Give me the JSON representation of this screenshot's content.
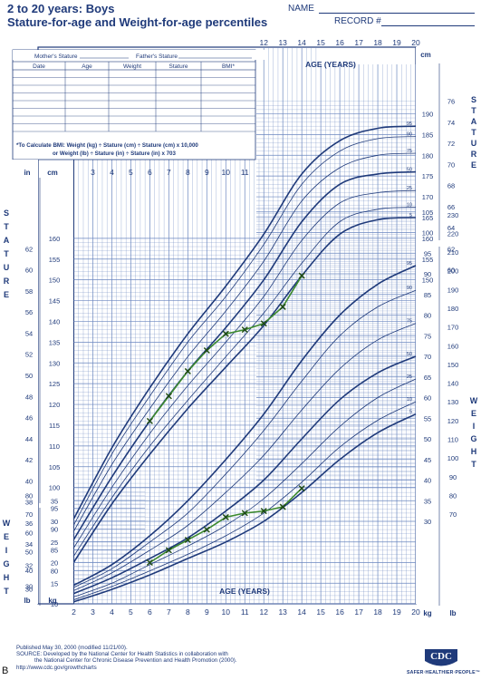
{
  "header": {
    "title_line1": "2 to 20 years: Boys",
    "title_line2": "Stature-for-age and Weight-for-age percentiles",
    "name_label": "NAME",
    "record_label": "RECORD #"
  },
  "table": {
    "mother_label": "Mother's Stature",
    "father_label": "Father's Stature",
    "columns": [
      "Date",
      "Age",
      "Weight",
      "Stature",
      "BMI*"
    ],
    "bmi_note_1": "*To Calculate BMI: Weight (kg) ÷ Stature (cm) ÷ Stature (cm) x 10,000",
    "bmi_note_2": "or Weight (lb) ÷ Stature (in) ÷ Stature (in) x 703"
  },
  "footer": {
    "line1": "Published May 30, 2000 (modified 11/21/00).",
    "line2": "SOURCE: Developed by the National Center for Health Statistics in collaboration with",
    "line3": "the National Center for Chronic Disease Prevention and Health Promotion (2000).",
    "line4": "http://www.cdc.gov/growthcharts",
    "logo_text": "CDC",
    "logo_tagline": "SAFER·HEALTHIER·PEOPLE™",
    "panel_label": "B"
  },
  "colors": {
    "chart_blue": "#1f3a7a",
    "grid_blue": "#6a86bf",
    "patient_line": "#3d8a2e",
    "patient_marker": "#1e4a14"
  },
  "chart_data": [
    {
      "type": "line",
      "name": "Stature-for-age",
      "x_label": "AGE (YEARS)",
      "y_label_left": "STATURE",
      "y_label_right": "STATURE",
      "x_range": [
        2,
        20
      ],
      "y_range_cm": [
        77,
        194
      ],
      "top_age_ticks": [
        12,
        13,
        14,
        15,
        16,
        17,
        18,
        19,
        20
      ],
      "mid_age_ticks": [
        3,
        4,
        5,
        6,
        7,
        8,
        9,
        10,
        11
      ],
      "left_cm_ticks": [
        80,
        85,
        90,
        95,
        100,
        105,
        110,
        115,
        120,
        125,
        130,
        135,
        140,
        145,
        150,
        155,
        160
      ],
      "left_in_ticks": [
        30,
        32,
        34,
        36,
        38,
        40,
        42,
        44,
        46,
        48,
        50,
        52,
        54,
        56,
        58,
        60,
        62
      ],
      "right_cm_ticks": [
        150,
        155,
        160,
        165,
        170,
        175,
        180,
        185,
        190
      ],
      "right_in_ticks": [
        60,
        62,
        64,
        66,
        68,
        70,
        72,
        74,
        76
      ],
      "ages": [
        2,
        4,
        6,
        8,
        10,
        12,
        14,
        16,
        18,
        20
      ],
      "percentiles": [
        {
          "name": "5",
          "values": [
            82,
            96,
            108,
            119,
            129,
            139,
            151,
            161,
            164.5,
            165
          ]
        },
        {
          "name": "10",
          "values": [
            83.5,
            97.5,
            110,
            121,
            131.5,
            142,
            154,
            164,
            167,
            167.5
          ]
        },
        {
          "name": "25",
          "values": [
            85.5,
            100,
            113,
            124.5,
            135,
            146,
            159.5,
            168.5,
            171,
            171.5
          ]
        },
        {
          "name": "50",
          "values": [
            87.5,
            102.5,
            116,
            128,
            138.5,
            150,
            164,
            173,
            175.5,
            176
          ]
        },
        {
          "name": "75",
          "values": [
            89.5,
            105.5,
            119,
            131.5,
            142.5,
            154.5,
            169,
            177,
            180,
            180.5
          ]
        },
        {
          "name": "90",
          "values": [
            91,
            108,
            122,
            135,
            146,
            158.5,
            173,
            181,
            184,
            184.5
          ]
        },
        {
          "name": "95",
          "values": [
            92.5,
            109.5,
            124,
            137,
            148.5,
            161,
            175.5,
            183.5,
            186.5,
            187
          ]
        }
      ],
      "patient": {
        "ages": [
          6,
          7,
          8,
          9,
          10,
          11,
          12,
          13,
          14
        ],
        "values": [
          116,
          122,
          128,
          133,
          137,
          138,
          139.5,
          143.5,
          151
        ]
      }
    },
    {
      "type": "line",
      "name": "Weight-for-age",
      "x_label": "AGE (YEARS)",
      "y_label_left": "WEIGHT",
      "y_label_right": "WEIGHT",
      "x_range": [
        2,
        20
      ],
      "y_range_kg": [
        10,
        107
      ],
      "bottom_age_ticks": [
        2,
        3,
        4,
        5,
        6,
        7,
        8,
        9,
        10,
        11,
        12,
        13,
        14,
        15,
        16,
        17,
        18,
        19,
        20
      ],
      "left_kg_ticks": [
        10,
        15,
        20,
        25,
        30,
        35
      ],
      "left_lb_ticks": [
        30,
        40,
        50,
        60,
        70,
        80
      ],
      "right_kg_ticks": [
        30,
        35,
        40,
        45,
        50,
        55,
        60,
        65,
        70,
        75,
        80,
        85,
        90,
        95,
        100,
        105
      ],
      "right_lb_ticks": [
        70,
        80,
        90,
        100,
        110,
        120,
        130,
        140,
        150,
        160,
        170,
        180,
        190,
        200,
        210,
        220,
        230
      ],
      "ages": [
        2,
        4,
        6,
        8,
        10,
        12,
        14,
        16,
        18,
        20
      ],
      "percentiles": [
        {
          "name": "5",
          "values": [
            10.5,
            13.5,
            17,
            21,
            25,
            30,
            37,
            45,
            51.5,
            56
          ]
        },
        {
          "name": "10",
          "values": [
            11,
            14.2,
            18,
            22,
            26.5,
            32,
            39.5,
            48,
            54.5,
            59
          ]
        },
        {
          "name": "25",
          "values": [
            11.7,
            15,
            19.5,
            24,
            29,
            35.5,
            44,
            53,
            60,
            64.5
          ]
        },
        {
          "name": "50",
          "values": [
            12.5,
            16.3,
            21,
            26,
            32.5,
            40,
            50,
            59.5,
            66,
            70
          ]
        },
        {
          "name": "75",
          "values": [
            13.2,
            17.5,
            23,
            29,
            37,
            46,
            57,
            67,
            74,
            78
          ]
        },
        {
          "name": "90",
          "values": [
            14,
            18.5,
            25,
            32,
            41.5,
            52,
            64,
            75,
            82,
            86
          ]
        },
        {
          "name": "95",
          "values": [
            14.5,
            19.5,
            26.5,
            35,
            45,
            56,
            69,
            80,
            87.5,
            92
          ]
        }
      ],
      "patient": {
        "ages": [
          6,
          7,
          8,
          9,
          10,
          11,
          12,
          13,
          14
        ],
        "values": [
          20,
          23,
          25.5,
          28,
          31,
          32,
          32.5,
          33.5,
          38
        ]
      }
    }
  ]
}
